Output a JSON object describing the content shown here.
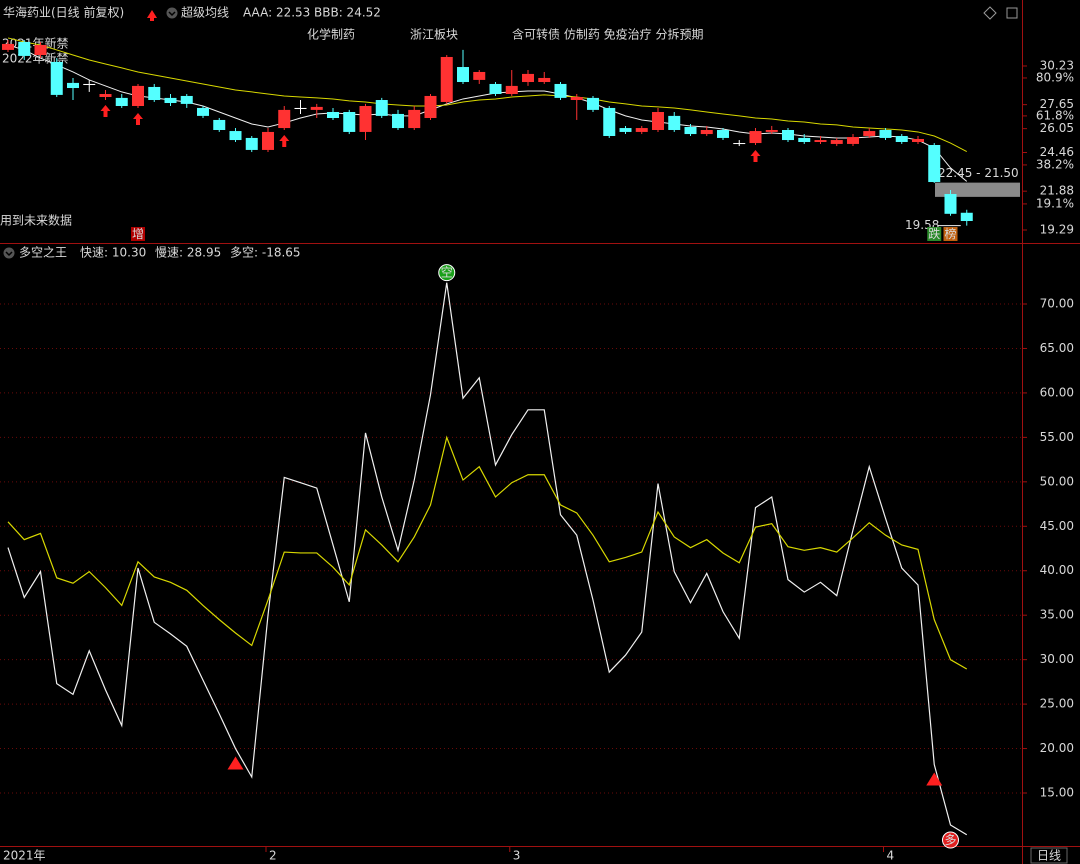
{
  "chart_data": [
    {
      "type": "candlestick",
      "title": "华海药业(日线 前复权)",
      "indicator": "超级均线",
      "tags": [
        "化学制药",
        "浙江板块",
        "含可转债 仿制药 免疫治疗 分拆预期"
      ],
      "notes": [
        "2021年新禁",
        "2022年新禁"
      ],
      "warning": "用到未来数据",
      "up_color": "#ff3232",
      "down_color": "#54ffff",
      "doji_color": "#ffffff",
      "open": [
        31.3,
        31.83,
        30.96,
        30.5,
        29.1,
        29.03,
        28.16,
        28.1,
        27.56,
        28.83,
        28.1,
        28.23,
        27.43,
        26.63,
        25.89,
        25.43,
        24.63,
        26.09,
        27.43,
        27.3,
        27.16,
        27.16,
        25.83,
        27.96,
        27.03,
        26.09,
        26.76,
        27.83,
        30.16,
        29.3,
        29.03,
        28.36,
        29.16,
        29.16,
        29.03,
        27.96,
        28.1,
        27.43,
        26.09,
        25.83,
        25.96,
        26.9,
        26.16,
        25.69,
        25.96,
        25.09,
        25.09,
        25.83,
        25.96,
        25.43,
        25.16,
        25.03,
        25.03,
        25.56,
        25.96,
        25.56,
        25.16,
        24.96,
        21.69,
        20.44
      ],
      "high": [
        31.96,
        31.96,
        31.83,
        30.76,
        29.43,
        29.3,
        28.63,
        28.36,
        29.03,
        29.03,
        28.36,
        28.36,
        27.56,
        26.76,
        26.09,
        25.56,
        26.09,
        27.56,
        27.96,
        27.7,
        27.43,
        27.3,
        27.7,
        28.1,
        27.3,
        27.56,
        28.36,
        30.96,
        31.3,
        29.96,
        29.16,
        29.96,
        29.96,
        29.83,
        29.16,
        28.36,
        28.23,
        27.56,
        26.23,
        26.23,
        27.43,
        27.16,
        26.36,
        26.23,
        26.09,
        25.29,
        26.09,
        26.23,
        26.09,
        25.69,
        25.56,
        25.43,
        25.69,
        26.09,
        26.09,
        25.69,
        25.56,
        25.09,
        21.96,
        20.64
      ],
      "low": [
        31.16,
        30.63,
        30.76,
        28.16,
        27.96,
        28.5,
        27.96,
        27.43,
        27.43,
        27.83,
        27.56,
        27.43,
        26.76,
        25.83,
        25.16,
        24.49,
        24.49,
        25.96,
        27.03,
        26.76,
        26.63,
        25.69,
        25.29,
        26.76,
        25.96,
        25.96,
        26.63,
        27.7,
        29.03,
        29.03,
        28.23,
        28.23,
        28.9,
        29.03,
        27.96,
        26.63,
        27.16,
        25.43,
        25.69,
        25.69,
        25.83,
        25.83,
        25.56,
        25.56,
        25.29,
        24.89,
        24.96,
        25.69,
        25.16,
        25.03,
        25.03,
        24.89,
        24.89,
        25.43,
        25.29,
        25.03,
        25.03,
        22.43,
        20.24,
        19.58
      ],
      "close": [
        31.7,
        30.9,
        31.63,
        28.3,
        28.76,
        28.96,
        28.36,
        27.56,
        28.9,
        27.96,
        27.76,
        27.7,
        26.9,
        25.96,
        25.29,
        24.63,
        25.83,
        27.3,
        27.36,
        27.5,
        26.76,
        25.83,
        27.56,
        26.9,
        26.09,
        27.3,
        28.23,
        30.83,
        29.16,
        29.83,
        28.36,
        28.9,
        29.7,
        29.43,
        28.1,
        28.16,
        27.3,
        25.56,
        25.83,
        26.09,
        27.16,
        25.96,
        25.69,
        25.96,
        25.43,
        25.03,
        25.89,
        25.96,
        25.29,
        25.16,
        25.29,
        25.29,
        25.49,
        25.89,
        25.43,
        25.16,
        25.36,
        22.49,
        20.37,
        19.89
      ],
      "series": [
        {
          "name": "AAA: 22.53",
          "color": "#f0f0f0",
          "values": [
            31.63,
            31.3,
            30.76,
            30.3,
            29.83,
            29.3,
            28.9,
            28.5,
            28.23,
            28.1,
            27.96,
            27.83,
            27.56,
            27.16,
            26.76,
            26.36,
            26.16,
            26.43,
            26.76,
            27.03,
            27.1,
            27.03,
            26.96,
            27.03,
            26.9,
            26.9,
            27.3,
            27.7,
            28.03,
            28.23,
            28.43,
            28.5,
            28.56,
            28.56,
            28.36,
            28.1,
            27.76,
            27.3,
            26.9,
            26.63,
            26.49,
            26.36,
            26.23,
            26.16,
            26.03,
            25.83,
            25.69,
            25.76,
            25.69,
            25.56,
            25.49,
            25.43,
            25.43,
            25.49,
            25.56,
            25.49,
            25.29,
            24.76,
            23.43,
            22.53
          ]
        },
        {
          "name": "BBB: 24.52",
          "color": "#d8d800",
          "values": [
            32.1,
            31.83,
            31.63,
            31.3,
            30.96,
            30.63,
            30.36,
            30.1,
            29.83,
            29.63,
            29.43,
            29.23,
            29.03,
            28.83,
            28.63,
            28.5,
            28.36,
            28.23,
            28.16,
            28.1,
            28.03,
            27.9,
            27.83,
            27.7,
            27.63,
            27.56,
            27.56,
            27.63,
            27.83,
            27.96,
            28.03,
            28.16,
            28.23,
            28.3,
            28.23,
            28.16,
            28.03,
            27.83,
            27.7,
            27.56,
            27.5,
            27.43,
            27.3,
            27.16,
            27.03,
            26.9,
            26.76,
            26.69,
            26.56,
            26.49,
            26.36,
            26.3,
            26.16,
            26.09,
            26.03,
            25.96,
            25.83,
            25.56,
            25.09,
            24.52
          ]
        }
      ],
      "ylim": [
        18.49,
        34.63
      ],
      "yticks": [
        30.23,
        27.65,
        26.05,
        24.46,
        21.88,
        19.29
      ],
      "fib_levels": [
        {
          "value": 29.43,
          "label": "80.9%"
        },
        {
          "value": 26.9,
          "label": "61.8%"
        },
        {
          "value": 23.63,
          "label": "38.2%"
        },
        {
          "value": 21.03,
          "label": "19.1%"
        }
      ],
      "up_arrows": [
        6,
        8,
        17,
        46
      ],
      "gap": {
        "label": "22.45 - 21.50",
        "from": 22.45,
        "to": 21.5
      },
      "low_marker": {
        "value": 19.58,
        "label": "19.58"
      },
      "badges": [
        {
          "index": 8,
          "label": "增",
          "color": "#b00000"
        },
        {
          "index": 57,
          "label": "跌",
          "color": "#2a8a2a"
        },
        {
          "index": 58,
          "label": "榜",
          "color": "#c06010"
        }
      ]
    },
    {
      "type": "line",
      "title": "多空之王",
      "series": [
        {
          "name": "快速: 10.30",
          "color": "#f0f0f0",
          "values": [
            42.6,
            37.0,
            39.9,
            27.3,
            26.1,
            31.0,
            26.6,
            22.6,
            40.3,
            34.2,
            32.9,
            31.5,
            27.7,
            23.9,
            20.0,
            16.8,
            35.0,
            50.5,
            49.9,
            49.3,
            42.9,
            36.5,
            55.5,
            48.3,
            42.3,
            50.2,
            59.8,
            72.4,
            59.4,
            61.7,
            51.9,
            55.3,
            58.1,
            58.1,
            46.3,
            44.0,
            36.7,
            28.6,
            30.5,
            33.1,
            49.8,
            39.9,
            36.4,
            39.7,
            35.4,
            32.4,
            47.1,
            48.3,
            39.0,
            37.6,
            38.7,
            37.2,
            44.6,
            51.7,
            45.9,
            40.3,
            38.4,
            18.2,
            11.4,
            10.3
          ]
        },
        {
          "name": "慢速: 28.95",
          "color": "#d8d800",
          "values": [
            45.5,
            43.5,
            44.2,
            39.2,
            38.6,
            39.9,
            38.1,
            36.1,
            41.0,
            39.3,
            38.7,
            37.8,
            36.1,
            34.5,
            33.0,
            31.6,
            36.7,
            42.1,
            42.0,
            42.0,
            40.4,
            38.4,
            44.6,
            42.9,
            41.0,
            43.8,
            47.4,
            55.0,
            50.2,
            51.7,
            48.3,
            49.9,
            50.8,
            50.8,
            47.4,
            46.5,
            44.0,
            41.0,
            41.5,
            42.1,
            46.6,
            43.8,
            42.6,
            43.5,
            42.0,
            40.9,
            44.9,
            45.3,
            42.7,
            42.3,
            42.6,
            42.1,
            43.7,
            45.4,
            44.0,
            42.9,
            42.4,
            34.5,
            30.0,
            28.95
          ]
        }
      ],
      "readouts": [
        {
          "label": "多空: -18.65",
          "color": "#ff40ff"
        }
      ],
      "ylim": [
        9.04,
        76.75
      ],
      "yticks": [
        {
          "value": 15,
          "label": "15.00"
        },
        {
          "value": 20,
          "label": "20.00"
        },
        {
          "value": 25,
          "label": "25.00"
        },
        {
          "value": 30,
          "label": "30.00"
        },
        {
          "value": 35,
          "label": "35.00"
        },
        {
          "value": 40,
          "label": "40.00"
        },
        {
          "value": 45,
          "label": "45.00"
        },
        {
          "value": 50,
          "label": "50.00"
        },
        {
          "value": 55,
          "label": "55.00"
        },
        {
          "value": 60,
          "label": "60.00"
        },
        {
          "value": 65,
          "label": "65.00"
        },
        {
          "value": 70,
          "label": "70.00"
        }
      ],
      "grid": true,
      "signals": [
        {
          "index": 27,
          "label": "空",
          "shape": "circle",
          "color": "#19a019",
          "side": "above"
        },
        {
          "index": 14,
          "shape": "triangle",
          "color": "#ff2020",
          "side": "below"
        },
        {
          "index": 57,
          "shape": "triangle",
          "color": "#ff2020",
          "side": "below"
        },
        {
          "index": 58,
          "label": "多",
          "shape": "circle",
          "color": "#e02020",
          "side": "below"
        }
      ],
      "x_labels": [
        {
          "index": 0,
          "label": "2021年"
        },
        {
          "index": 16,
          "label": "2"
        },
        {
          "index": 31,
          "label": "3"
        },
        {
          "index": 54,
          "label": "4"
        }
      ],
      "period": "日线"
    }
  ]
}
